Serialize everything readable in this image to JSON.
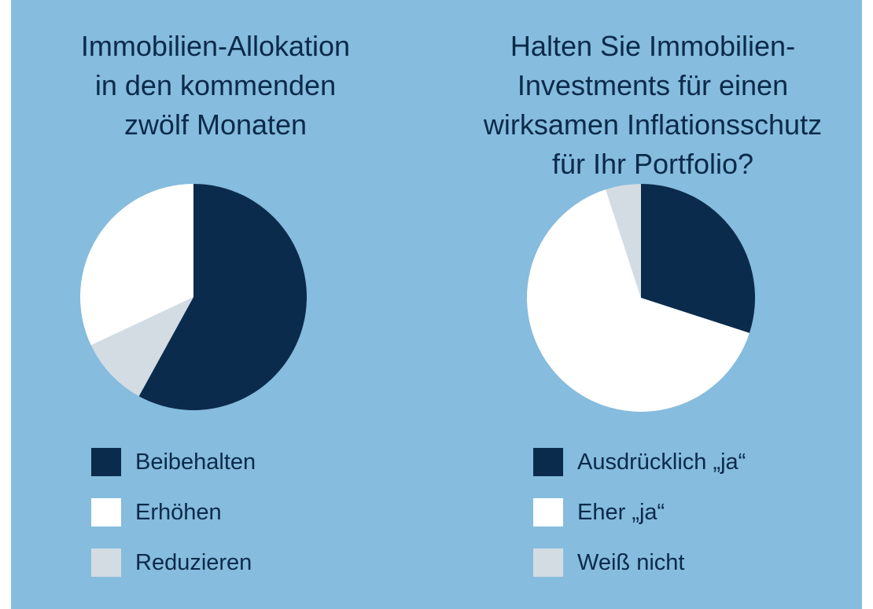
{
  "colors": {
    "background": "#86bcdd",
    "text": "#0a2a4a"
  },
  "chart_data": [
    {
      "type": "pie",
      "title_lines": [
        "Immobilien-Allokation",
        "in den kommenden",
        "zwölf Monaten"
      ],
      "slices": [
        {
          "label": "Beibehalten",
          "value": 58,
          "color": "#0b2b4c"
        },
        {
          "label": "Reduzieren",
          "value": 10,
          "color": "#d3dce3"
        },
        {
          "label": "Erhöhen",
          "value": 32,
          "color": "#ffffff"
        }
      ],
      "legend": [
        {
          "label": "Beibehalten",
          "color": "#0b2b4c"
        },
        {
          "label": "Erhöhen",
          "color": "#ffffff"
        },
        {
          "label": "Reduzieren",
          "color": "#d3dce3"
        }
      ]
    },
    {
      "type": "pie",
      "title_lines": [
        "Halten Sie Immobilien-",
        "Investments für einen",
        "wirksamen Inflationsschutz",
        "für Ihr Portfolio?"
      ],
      "slices": [
        {
          "label": "Ausdrücklich „ja“",
          "value": 30,
          "color": "#0b2b4c"
        },
        {
          "label": "Eher „ja“",
          "value": 65,
          "color": "#ffffff"
        },
        {
          "label": "Weiß nicht",
          "value": 5,
          "color": "#d3dce3"
        }
      ],
      "legend": [
        {
          "label": "Ausdrücklich „ja“",
          "color": "#0b2b4c"
        },
        {
          "label": "Eher „ja“",
          "color": "#ffffff"
        },
        {
          "label": "Weiß nicht",
          "color": "#d3dce3"
        }
      ]
    }
  ]
}
